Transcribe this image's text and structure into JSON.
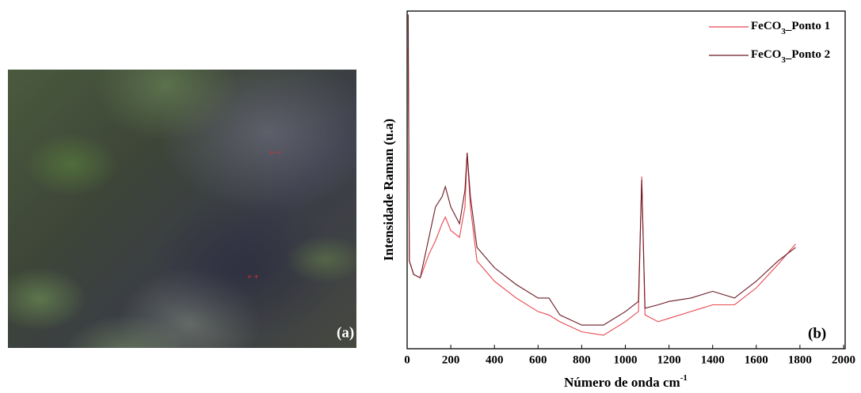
{
  "image": {
    "label": "(a)"
  },
  "chart_data": {
    "type": "line",
    "panel_label": "(b)",
    "x_label": "Número de onda cm",
    "x_label_sup": "-1",
    "y_label": "Intensidade Raman (u.a)",
    "x": [
      5,
      10,
      30,
      60,
      100,
      130,
      160,
      175,
      200,
      240,
      265,
      275,
      290,
      320,
      400,
      500,
      600,
      650,
      700,
      800,
      900,
      1000,
      1060,
      1075,
      1090,
      1150,
      1200,
      1300,
      1400,
      1500,
      1600,
      1700,
      1780
    ],
    "series": [
      {
        "name": "FeCO3_Ponto 1",
        "color": "#e8474f",
        "values": [
          89,
          26,
          22,
          21,
          28,
          32,
          37,
          39,
          35,
          33,
          42,
          58,
          42,
          26,
          20,
          15,
          11,
          10,
          8,
          5,
          4,
          8,
          11,
          51,
          10,
          8,
          9,
          11,
          13,
          13,
          18,
          25,
          31
        ]
      },
      {
        "name": "FeCO3_Ponto 2",
        "color": "#6b1a24",
        "values": [
          99,
          26,
          22,
          21,
          33,
          42,
          45,
          48,
          42,
          37,
          47,
          58,
          45,
          30,
          24,
          19,
          15,
          15,
          10,
          7,
          7,
          11,
          14,
          50,
          12,
          13,
          14,
          15,
          17,
          15,
          20,
          26,
          30
        ]
      }
    ],
    "xlim": [
      0,
      2000
    ],
    "xticks": [
      0,
      200,
      400,
      600,
      800,
      1000,
      1200,
      1400,
      1600,
      1800,
      2000
    ],
    "ylim": [
      0,
      100
    ],
    "legend": "upper right"
  }
}
